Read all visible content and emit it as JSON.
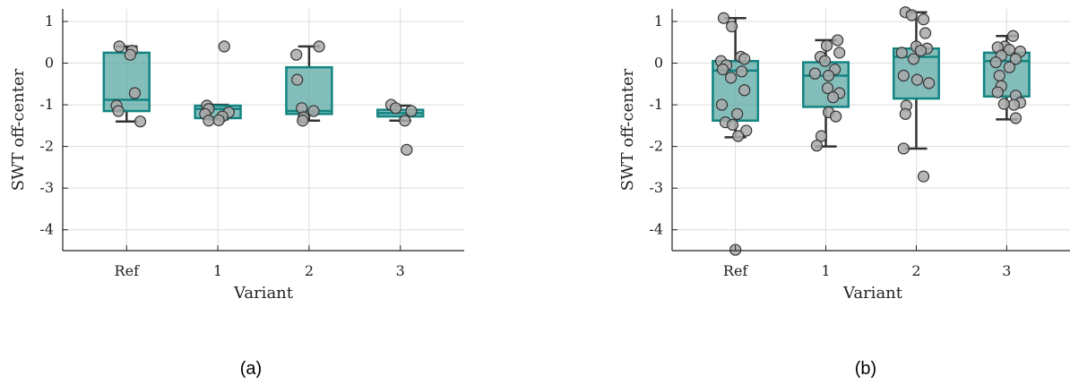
{
  "colors": {
    "box_fill": "#5aa8a4",
    "box_edge": "#138482",
    "whisker": "#333333",
    "point_fill": "#a9a9a9",
    "point_edge": "#333333",
    "grid": "#dcdcdc",
    "axis": "#222222"
  },
  "chart_data": [
    {
      "type": "box",
      "panel_label": "(a)",
      "xlabel": "Variant",
      "ylabel": "SWT off-center",
      "categories": [
        "Ref",
        "1",
        "2",
        "3"
      ],
      "ylim": [
        -4.5,
        1.3
      ],
      "yticks": [
        1,
        0,
        -1,
        -2,
        -3,
        -4
      ],
      "ytick_labels": [
        "1",
        "0",
        "-1",
        "-2",
        "-3",
        "-4"
      ],
      "grid": true,
      "boxes": [
        {
          "q1": -1.15,
          "median": -0.88,
          "q3": 0.25,
          "whisker_low": -1.4,
          "whisker_high": 0.4
        },
        {
          "q1": -1.32,
          "median": -1.1,
          "q3": -1.02,
          "whisker_low": -1.35,
          "whisker_high": -1.0
        },
        {
          "q1": -1.22,
          "median": -1.15,
          "q3": -0.1,
          "whisker_low": -1.38,
          "whisker_high": 0.4
        },
        {
          "q1": -1.28,
          "median": -1.2,
          "q3": -1.12,
          "whisker_low": -1.38,
          "whisker_high": -1.02
        }
      ],
      "points": [
        [
          {
            "dx": -0.08,
            "y": 0.4
          },
          {
            "dx": 0.06,
            "y": 0.3
          },
          {
            "dx": 0.04,
            "y": 0.2
          },
          {
            "dx": 0.09,
            "y": -0.72
          },
          {
            "dx": -0.11,
            "y": -1.02
          },
          {
            "dx": -0.09,
            "y": -1.15
          },
          {
            "dx": 0.15,
            "y": -1.4
          }
        ],
        [
          {
            "dx": 0.07,
            "y": 0.4
          },
          {
            "dx": -0.12,
            "y": -1.02
          },
          {
            "dx": -0.1,
            "y": -1.1
          },
          {
            "dx": 0.12,
            "y": -1.18
          },
          {
            "dx": -0.14,
            "y": -1.22
          },
          {
            "dx": 0.05,
            "y": -1.28
          },
          {
            "dx": -0.1,
            "y": -1.38
          },
          {
            "dx": 0.01,
            "y": -1.37
          }
        ],
        [
          {
            "dx": -0.14,
            "y": 0.2
          },
          {
            "dx": 0.11,
            "y": 0.4
          },
          {
            "dx": -0.13,
            "y": -0.4
          },
          {
            "dx": -0.08,
            "y": -1.08
          },
          {
            "dx": 0.05,
            "y": -1.15
          },
          {
            "dx": -0.06,
            "y": -1.3
          },
          {
            "dx": -0.07,
            "y": -1.38
          }
        ],
        [
          {
            "dx": -0.1,
            "y": -1.0
          },
          {
            "dx": -0.05,
            "y": -1.08
          },
          {
            "dx": 0.12,
            "y": -1.15
          },
          {
            "dx": 0.05,
            "y": -1.38
          },
          {
            "dx": 0.07,
            "y": -2.08
          }
        ]
      ]
    },
    {
      "type": "box",
      "panel_label": "(b)",
      "xlabel": "Variant",
      "ylabel": "SWT off-center",
      "categories": [
        "Ref",
        "1",
        "2",
        "3"
      ],
      "ylim": [
        -4.5,
        1.3
      ],
      "yticks": [
        1,
        0,
        -1,
        -2,
        -3,
        -4
      ],
      "ytick_labels": [
        "1",
        "0",
        "-1",
        "-2",
        "-3",
        "-4"
      ],
      "grid": true,
      "boxes": [
        {
          "q1": -1.38,
          "median": -0.18,
          "q3": 0.05,
          "whisker_low": -1.78,
          "whisker_high": 1.08
        },
        {
          "q1": -1.05,
          "median": -0.3,
          "q3": 0.02,
          "whisker_low": -2.0,
          "whisker_high": 0.55
        },
        {
          "q1": -0.85,
          "median": 0.15,
          "q3": 0.35,
          "whisker_low": -2.05,
          "whisker_high": 1.22
        },
        {
          "q1": -0.8,
          "median": 0.05,
          "q3": 0.25,
          "whisker_low": -1.35,
          "whisker_high": 0.65
        }
      ],
      "points": [
        [
          {
            "dx": -0.13,
            "y": 1.08
          },
          {
            "dx": -0.04,
            "y": 0.88
          },
          {
            "dx": 0.06,
            "y": 0.15
          },
          {
            "dx": 0.1,
            "y": 0.1
          },
          {
            "dx": -0.16,
            "y": 0.05
          },
          {
            "dx": -0.1,
            "y": -0.05
          },
          {
            "dx": -0.14,
            "y": -0.15
          },
          {
            "dx": 0.07,
            "y": -0.2
          },
          {
            "dx": -0.05,
            "y": -0.35
          },
          {
            "dx": 0.1,
            "y": -0.65
          },
          {
            "dx": -0.15,
            "y": -1.0
          },
          {
            "dx": 0.02,
            "y": -1.22
          },
          {
            "dx": -0.11,
            "y": -1.42
          },
          {
            "dx": -0.03,
            "y": -1.48
          },
          {
            "dx": 0.12,
            "y": -1.62
          },
          {
            "dx": 0.03,
            "y": -1.75
          },
          {
            "dx": 0.0,
            "y": -4.48
          }
        ],
        [
          {
            "dx": 0.13,
            "y": 0.55
          },
          {
            "dx": 0.01,
            "y": 0.42
          },
          {
            "dx": 0.15,
            "y": 0.25
          },
          {
            "dx": -0.06,
            "y": 0.15
          },
          {
            "dx": -0.01,
            "y": 0.05
          },
          {
            "dx": 0.1,
            "y": -0.15
          },
          {
            "dx": -0.12,
            "y": -0.25
          },
          {
            "dx": 0.03,
            "y": -0.3
          },
          {
            "dx": 0.02,
            "y": -0.6
          },
          {
            "dx": 0.15,
            "y": -0.72
          },
          {
            "dx": 0.08,
            "y": -0.82
          },
          {
            "dx": 0.03,
            "y": -1.18
          },
          {
            "dx": 0.11,
            "y": -1.28
          },
          {
            "dx": -0.05,
            "y": -1.75
          },
          {
            "dx": -0.1,
            "y": -1.98
          }
        ],
        [
          {
            "dx": -0.12,
            "y": 1.22
          },
          {
            "dx": -0.05,
            "y": 1.15
          },
          {
            "dx": 0.08,
            "y": 1.05
          },
          {
            "dx": 0.1,
            "y": 0.72
          },
          {
            "dx": 0.0,
            "y": 0.4
          },
          {
            "dx": 0.12,
            "y": 0.35
          },
          {
            "dx": -0.16,
            "y": 0.25
          },
          {
            "dx": 0.05,
            "y": 0.3
          },
          {
            "dx": -0.03,
            "y": 0.1
          },
          {
            "dx": -0.14,
            "y": -0.3
          },
          {
            "dx": 0.01,
            "y": -0.4
          },
          {
            "dx": 0.14,
            "y": -0.48
          },
          {
            "dx": -0.11,
            "y": -1.02
          },
          {
            "dx": -0.12,
            "y": -1.22
          },
          {
            "dx": -0.14,
            "y": -2.05
          },
          {
            "dx": 0.08,
            "y": -2.72
          }
        ],
        [
          {
            "dx": 0.07,
            "y": 0.65
          },
          {
            "dx": -0.02,
            "y": 0.4
          },
          {
            "dx": -0.1,
            "y": 0.38
          },
          {
            "dx": 0.03,
            "y": 0.32
          },
          {
            "dx": 0.15,
            "y": 0.28
          },
          {
            "dx": -0.06,
            "y": 0.18
          },
          {
            "dx": 0.1,
            "y": 0.1
          },
          {
            "dx": -0.12,
            "y": 0.02
          },
          {
            "dx": 0.03,
            "y": -0.1
          },
          {
            "dx": -0.08,
            "y": -0.3
          },
          {
            "dx": -0.06,
            "y": -0.55
          },
          {
            "dx": -0.1,
            "y": -0.7
          },
          {
            "dx": 0.1,
            "y": -0.78
          },
          {
            "dx": 0.15,
            "y": -0.95
          },
          {
            "dx": 0.08,
            "y": -1.0
          },
          {
            "dx": -0.03,
            "y": -0.98
          },
          {
            "dx": 0.1,
            "y": -1.32
          }
        ]
      ]
    }
  ]
}
